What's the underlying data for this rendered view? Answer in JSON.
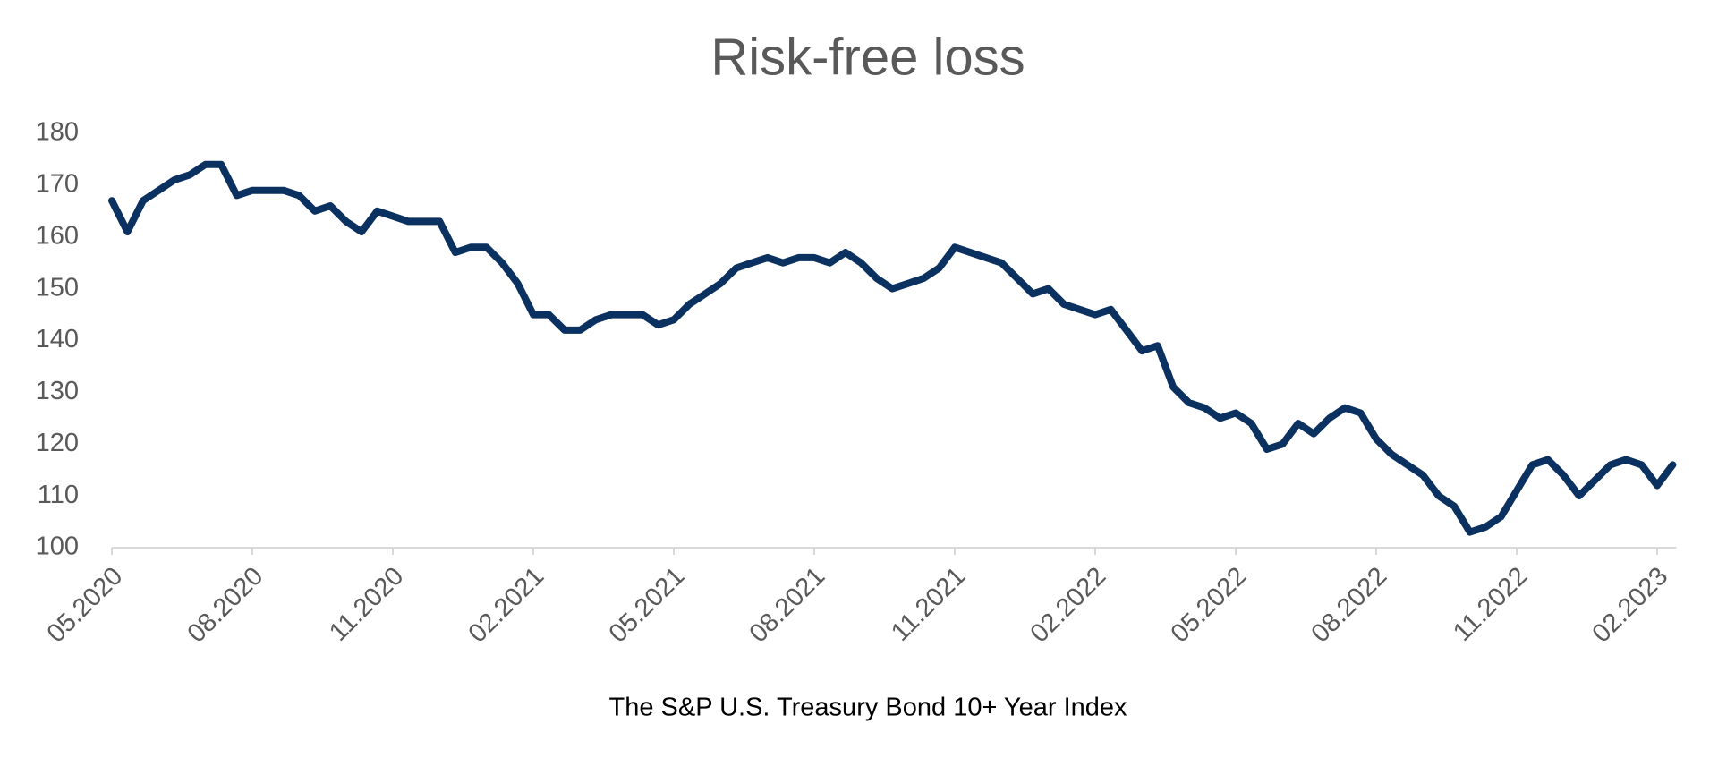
{
  "chart_data": {
    "type": "line",
    "title": "Risk-free loss",
    "x_label": "The S&P U.S. Treasury Bond 10+ Year Index",
    "categories": [
      "05.2020",
      null,
      null,
      null,
      null,
      null,
      null,
      null,
      null,
      "08.2020",
      null,
      null,
      null,
      null,
      null,
      null,
      null,
      null,
      "11.2020",
      null,
      null,
      null,
      null,
      null,
      null,
      null,
      null,
      "02.2021",
      null,
      null,
      null,
      null,
      null,
      null,
      null,
      null,
      "05.2021",
      null,
      null,
      null,
      null,
      null,
      null,
      null,
      null,
      "08.2021",
      null,
      null,
      null,
      null,
      null,
      null,
      null,
      null,
      "11.2021",
      null,
      null,
      null,
      null,
      null,
      null,
      null,
      null,
      "02.2022",
      null,
      null,
      null,
      null,
      null,
      null,
      null,
      null,
      "05.2022",
      null,
      null,
      null,
      null,
      null,
      null,
      null,
      null,
      "08.2022",
      null,
      null,
      null,
      null,
      null,
      null,
      null,
      null,
      "11.2022",
      null,
      null,
      null,
      null,
      null,
      null,
      null,
      null,
      "02.2023",
      null
    ],
    "values": [
      167,
      161,
      167,
      169,
      171,
      172,
      174,
      174,
      168,
      169,
      169,
      169,
      168,
      165,
      166,
      163,
      161,
      165,
      164,
      163,
      163,
      163,
      157,
      158,
      158,
      155,
      151,
      145,
      145,
      142,
      142,
      144,
      145,
      145,
      145,
      143,
      144,
      147,
      149,
      151,
      154,
      155,
      156,
      155,
      156,
      156,
      155,
      157,
      155,
      152,
      150,
      151,
      152,
      154,
      158,
      157,
      156,
      155,
      152,
      149,
      150,
      147,
      146,
      145,
      146,
      142,
      138,
      139,
      131,
      128,
      127,
      125,
      126,
      124,
      119,
      120,
      124,
      122,
      125,
      127,
      126,
      121,
      118,
      116,
      114,
      110,
      108,
      103,
      104,
      106,
      111,
      116,
      117,
      114,
      110,
      113,
      116,
      117,
      116,
      112,
      116
    ],
    "color": "#0b3160",
    "ylim": [
      100,
      180
    ],
    "yticks": [
      100,
      110,
      120,
      130,
      140,
      150,
      160,
      170,
      180
    ],
    "grid": false
  }
}
